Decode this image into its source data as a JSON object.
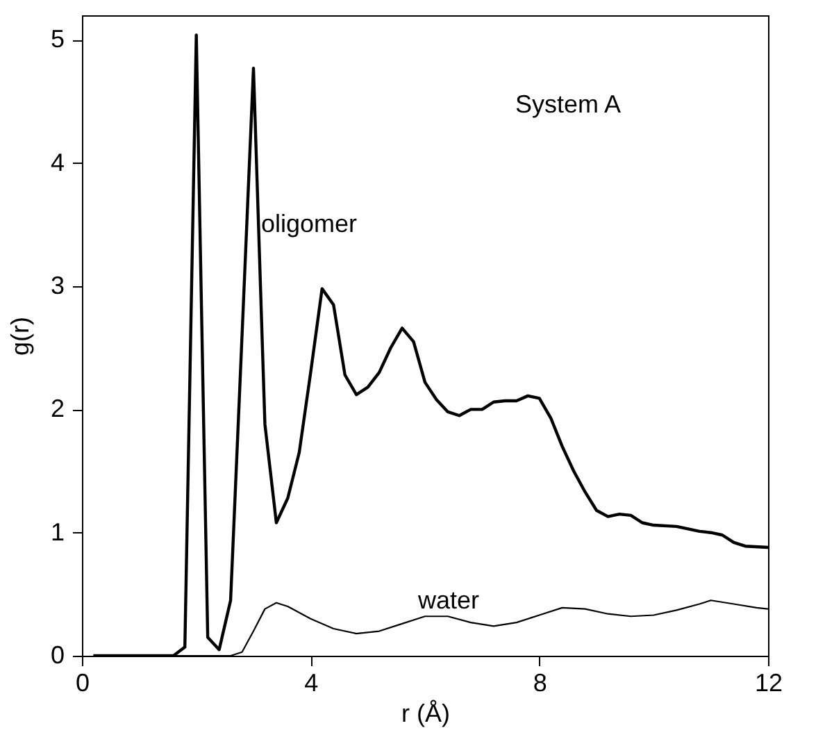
{
  "chart_data": {
    "type": "line",
    "xlabel": "r (Å)",
    "ylabel": "g(r)",
    "xlim": [
      0,
      12
    ],
    "xticks": [
      0,
      4,
      8,
      12
    ],
    "ylim": [
      0,
      5.2
    ],
    "yticks": [
      0,
      1,
      2,
      3,
      4,
      5
    ],
    "grid": false,
    "marker": "none",
    "line_style": "solid",
    "annotations": [
      "System A"
    ],
    "series": [
      {
        "name": "oligomer",
        "color": "#000000",
        "x": [
          0.2,
          0.4,
          0.6,
          0.8,
          1.0,
          1.2,
          1.4,
          1.6,
          1.8,
          2.0,
          2.2,
          2.4,
          2.6,
          2.8,
          3.0,
          3.2,
          3.4,
          3.6,
          3.8,
          4.0,
          4.2,
          4.4,
          4.6,
          4.8,
          5.0,
          5.2,
          5.4,
          5.6,
          5.8,
          6.0,
          6.2,
          6.4,
          6.6,
          6.8,
          7.0,
          7.2,
          7.4,
          7.6,
          7.8,
          8.0,
          8.2,
          8.4,
          8.6,
          8.8,
          9.0,
          9.2,
          9.4,
          9.6,
          9.8,
          10.0,
          10.4,
          10.8,
          11.0,
          11.2,
          11.4,
          11.6,
          12.0
        ],
        "values": [
          0,
          0,
          0,
          0,
          0,
          0,
          0,
          0,
          0.07,
          5.04,
          0.15,
          0.05,
          0.45,
          2.6,
          4.77,
          1.88,
          1.08,
          1.28,
          1.65,
          2.3,
          2.98,
          2.85,
          2.28,
          2.12,
          2.18,
          2.3,
          2.5,
          2.66,
          2.55,
          2.22,
          2.08,
          1.98,
          1.95,
          2.0,
          2.0,
          2.06,
          2.07,
          2.07,
          2.11,
          2.09,
          1.93,
          1.7,
          1.5,
          1.33,
          1.18,
          1.13,
          1.15,
          1.14,
          1.08,
          1.06,
          1.05,
          1.01,
          1.0,
          0.98,
          0.92,
          0.89,
          0.88
        ]
      },
      {
        "name": "water",
        "color": "#000000",
        "x": [
          0.2,
          1.0,
          2.0,
          2.6,
          2.8,
          3.0,
          3.2,
          3.4,
          3.6,
          4.0,
          4.4,
          4.8,
          5.2,
          5.6,
          6.0,
          6.4,
          6.8,
          7.2,
          7.6,
          8.0,
          8.4,
          8.8,
          9.2,
          9.6,
          10.0,
          10.4,
          10.8,
          11.0,
          11.4,
          11.8,
          12.0
        ],
        "values": [
          0,
          0,
          0,
          0,
          0.03,
          0.2,
          0.38,
          0.43,
          0.4,
          0.3,
          0.22,
          0.18,
          0.2,
          0.26,
          0.32,
          0.32,
          0.27,
          0.24,
          0.27,
          0.33,
          0.39,
          0.38,
          0.34,
          0.32,
          0.33,
          0.37,
          0.42,
          0.45,
          0.42,
          0.39,
          0.38
        ]
      }
    ]
  }
}
